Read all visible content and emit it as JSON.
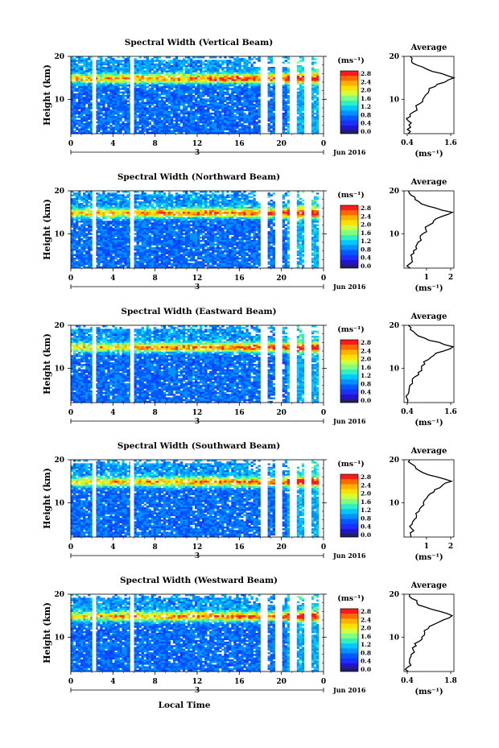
{
  "xlabel": "Local Time",
  "colorbar": {
    "unit": "(ms⁻¹)",
    "ticks": [
      "2.8",
      "2.4",
      "2.0",
      "1.6",
      "1.2",
      "0.8",
      "0.4",
      "0.0"
    ],
    "colors": [
      "#ff1a1a",
      "#ff6a00",
      "#ffb000",
      "#ffe000",
      "#d0ff40",
      "#80ff80",
      "#30f0c0",
      "#00c8ff",
      "#0090ff",
      "#0058ff",
      "#1a30ff",
      "#2414c8"
    ]
  },
  "x_ticks": [
    "0",
    "4",
    "8",
    "12",
    "16",
    "20",
    "0"
  ],
  "date_marker": "3",
  "date_label": "Jun 2016",
  "y_ticks": [
    "20",
    "10"
  ],
  "ylabel": "Height (km)",
  "avg_title": "Average",
  "avg_unit": "(ms⁻¹)",
  "chart_data": [
    {
      "type": "heatmap",
      "title": "Spectral Width (Vertical Beam)",
      "xlabel": "Local Time",
      "ylabel": "Height (km)",
      "xlim": [
        0,
        24
      ],
      "ylim": [
        2,
        20
      ],
      "colorbar_range": [
        0,
        2.8
      ],
      "avg_profile": {
        "type": "line",
        "xlim": [
          0.4,
          1.6
        ],
        "x_ticks": [
          "0.4",
          "1.6"
        ],
        "height_km": [
          2,
          3,
          4,
          5,
          6,
          7,
          8,
          9,
          10,
          11,
          12,
          13,
          14,
          15,
          16,
          17,
          18,
          19,
          20
        ],
        "width": [
          0.5,
          0.48,
          0.52,
          0.5,
          0.55,
          0.62,
          0.7,
          0.78,
          0.85,
          0.92,
          1.0,
          1.15,
          1.38,
          1.62,
          1.3,
          0.95,
          0.7,
          0.58,
          0.55
        ]
      }
    },
    {
      "type": "heatmap",
      "title": "Spectral Width (Northward Beam)",
      "xlabel": "Local Time",
      "ylabel": "Height (km)",
      "xlim": [
        0,
        24
      ],
      "ylim": [
        2,
        20
      ],
      "colorbar_range": [
        0,
        2.8
      ],
      "avg_profile": {
        "type": "line",
        "xlim": [
          0.5,
          2.1
        ],
        "x_ticks": [
          "1",
          "2"
        ],
        "height_km": [
          2,
          3,
          4,
          5,
          6,
          7,
          8,
          9,
          10,
          11,
          12,
          13,
          14,
          15,
          16,
          17,
          18,
          19,
          20
        ],
        "width": [
          0.7,
          0.68,
          0.75,
          0.72,
          0.8,
          0.88,
          0.95,
          1.02,
          1.1,
          1.2,
          1.3,
          1.45,
          1.7,
          2.05,
          1.5,
          1.05,
          0.85,
          0.72,
          0.65
        ]
      }
    },
    {
      "type": "heatmap",
      "title": "Spectral Width (Eastward Beam)",
      "xlabel": "Local Time",
      "ylabel": "Height (km)",
      "xlim": [
        0,
        24
      ],
      "ylim": [
        2,
        20
      ],
      "colorbar_range": [
        0,
        2.8
      ],
      "avg_profile": {
        "type": "line",
        "xlim": [
          0.4,
          1.6
        ],
        "x_ticks": [
          "0.4",
          "1.6"
        ],
        "height_km": [
          2,
          3,
          4,
          5,
          6,
          7,
          8,
          9,
          10,
          11,
          12,
          13,
          14,
          15,
          16,
          17,
          18,
          19,
          20
        ],
        "width": [
          0.48,
          0.47,
          0.5,
          0.52,
          0.54,
          0.6,
          0.66,
          0.74,
          0.82,
          0.9,
          0.98,
          1.12,
          1.35,
          1.58,
          1.25,
          0.9,
          0.68,
          0.55,
          0.5
        ]
      }
    },
    {
      "type": "heatmap",
      "title": "Spectral Width (Southward Beam)",
      "xlabel": "Local Time",
      "ylabel": "Height (km)",
      "xlim": [
        0,
        24
      ],
      "ylim": [
        2,
        20
      ],
      "colorbar_range": [
        0,
        2.8
      ],
      "avg_profile": {
        "type": "line",
        "xlim": [
          0.5,
          2.1
        ],
        "x_ticks": [
          "1",
          "2"
        ],
        "height_km": [
          2,
          3,
          4,
          5,
          6,
          7,
          8,
          9,
          10,
          11,
          12,
          13,
          14,
          15,
          16,
          17,
          18,
          19,
          20
        ],
        "width": [
          0.72,
          0.7,
          0.74,
          0.76,
          0.82,
          0.9,
          0.98,
          1.05,
          1.12,
          1.22,
          1.32,
          1.48,
          1.72,
          2.02,
          1.55,
          1.1,
          0.88,
          0.75,
          0.68
        ]
      }
    },
    {
      "type": "heatmap",
      "title": "Spectral Width (Westward Beam)",
      "xlabel": "Local Time",
      "ylabel": "Height (km)",
      "xlim": [
        0,
        24
      ],
      "ylim": [
        2,
        20
      ],
      "colorbar_range": [
        0,
        2.8
      ],
      "avg_profile": {
        "type": "line",
        "xlim": [
          0.4,
          1.8
        ],
        "x_ticks": [
          "0.4",
          "1.8"
        ],
        "height_km": [
          2,
          3,
          4,
          5,
          6,
          7,
          8,
          9,
          10,
          11,
          12,
          13,
          14,
          15,
          16,
          17,
          18,
          19,
          20
        ],
        "width": [
          0.52,
          0.5,
          0.55,
          0.56,
          0.6,
          0.66,
          0.74,
          0.82,
          0.9,
          0.98,
          1.08,
          1.25,
          1.5,
          1.75,
          1.4,
          1.0,
          0.76,
          0.62,
          0.56
        ]
      }
    }
  ]
}
